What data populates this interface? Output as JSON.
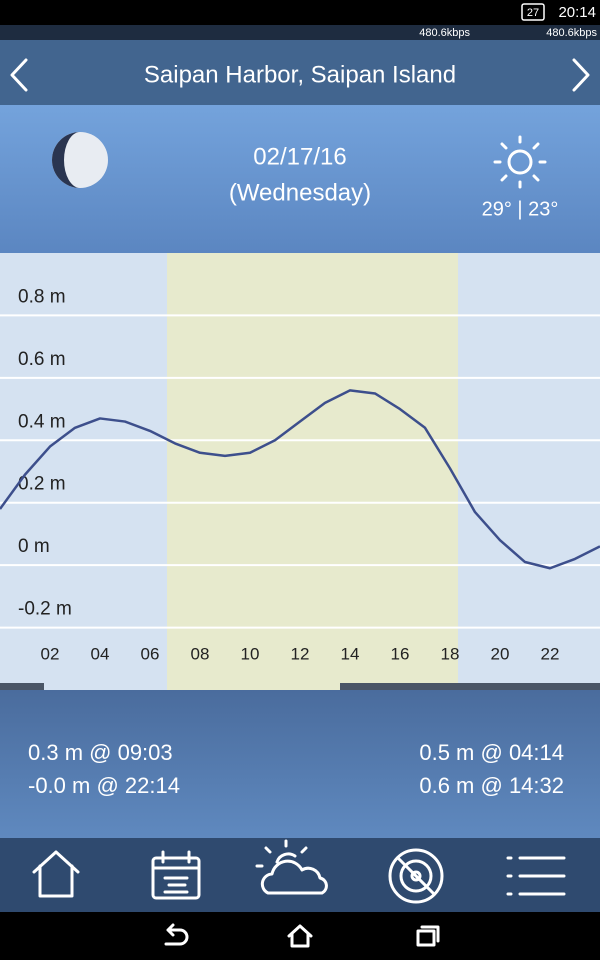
{
  "status_bar": {
    "time": "20:14",
    "battery": "27",
    "upload_speed": "480.6kbps",
    "download_speed": "480.6kbps"
  },
  "header": {
    "title": "Saipan Harbor, Saipan Island"
  },
  "day": {
    "date": "02/17/16",
    "weekday": "(Wednesday)",
    "temperature": "29° | 23°"
  },
  "chart_data": {
    "type": "line",
    "x": [
      0,
      1,
      2,
      3,
      4,
      5,
      6,
      7,
      8,
      9,
      10,
      11,
      12,
      13,
      14,
      15,
      16,
      17,
      18,
      19,
      20,
      21,
      22,
      23,
      24
    ],
    "values": [
      0.18,
      0.29,
      0.38,
      0.44,
      0.47,
      0.46,
      0.43,
      0.39,
      0.36,
      0.35,
      0.36,
      0.4,
      0.46,
      0.52,
      0.56,
      0.55,
      0.5,
      0.44,
      0.31,
      0.17,
      0.08,
      0.01,
      -0.01,
      0.02,
      0.06
    ],
    "color": "#3d4f8c",
    "daylight": [
      6.68,
      18.32
    ],
    "xlim": [
      0,
      24
    ],
    "ylim": [
      -0.4,
      1.0
    ],
    "xticks": [
      {
        "value": 2,
        "label": "02"
      },
      {
        "value": 4,
        "label": "04"
      },
      {
        "value": 6,
        "label": "06"
      },
      {
        "value": 8,
        "label": "08"
      },
      {
        "value": 10,
        "label": "10"
      },
      {
        "value": 12,
        "label": "12"
      },
      {
        "value": 14,
        "label": "14"
      },
      {
        "value": 16,
        "label": "16"
      },
      {
        "value": 18,
        "label": "18"
      },
      {
        "value": 20,
        "label": "20"
      },
      {
        "value": 22,
        "label": "22"
      }
    ],
    "yticks": [
      {
        "value": -0.2,
        "label": "-0.2 m"
      },
      {
        "value": 0,
        "label": "0 m"
      },
      {
        "value": 0.2,
        "label": "0.2 m"
      },
      {
        "value": 0.4,
        "label": "0.4 m"
      },
      {
        "value": 0.6,
        "label": "0.6 m"
      },
      {
        "value": 0.8,
        "label": "0.8 m"
      }
    ],
    "grid": true
  },
  "tides": {
    "lows": [
      "0.3 m @ 09:03",
      "-0.0 m @ 22:14"
    ],
    "highs": [
      "0.5 m @ 04:14",
      "0.6 m @ 14:32"
    ]
  }
}
